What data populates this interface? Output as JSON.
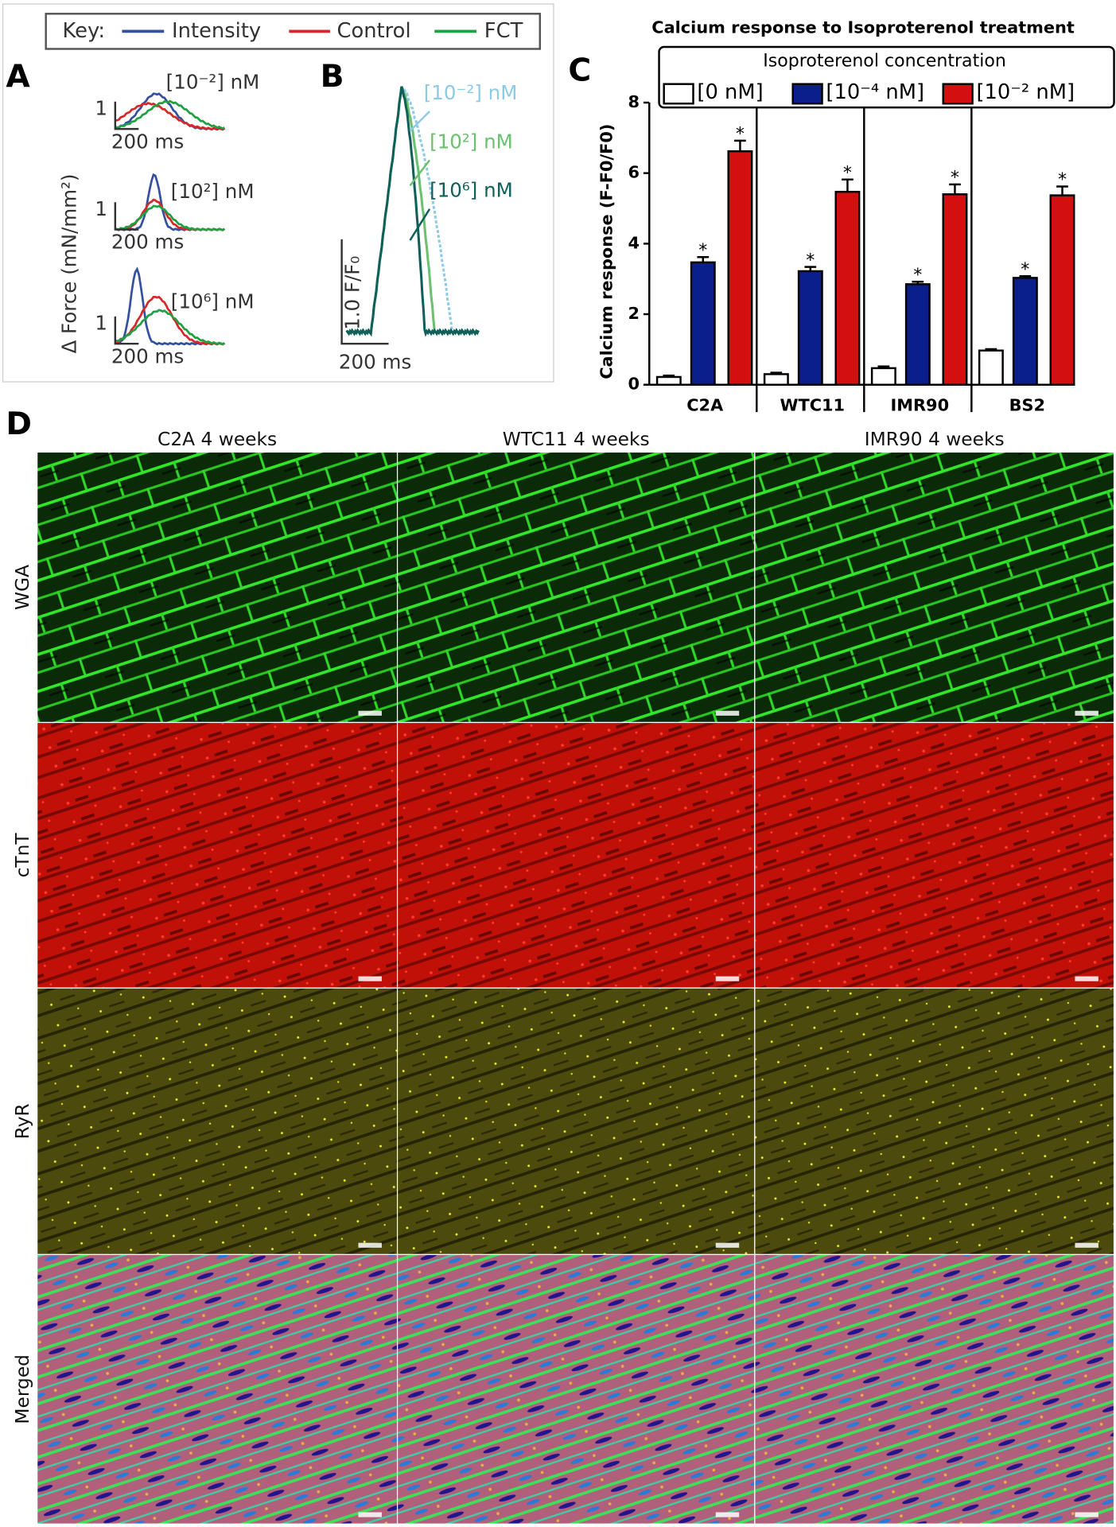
{
  "panel_labels": [
    "A",
    "B",
    "C",
    "D"
  ],
  "key": {
    "label": "Key:",
    "items": [
      "Intensity",
      "Control",
      "FCT"
    ]
  },
  "panel_a": {
    "ylabel": "Δ Force (mN/mm²)",
    "scale_value": "1",
    "scale_time": "200 ms",
    "concentrations": [
      "[10⁻²] nM",
      "[10²] nM",
      "[10⁶] nM"
    ]
  },
  "panel_b": {
    "scale_value": "1.0 F/F₀",
    "scale_time": "200 ms",
    "concentrations": [
      "[10⁻²] nM",
      "[10²] nM",
      "[10⁶] nM"
    ]
  },
  "chart_data": {
    "type": "bar",
    "title": "Calcium response to Isoproterenol treatment",
    "ylabel": "Calcium response (F-F0/F0)",
    "legend_title": "Isoproterenol concentration",
    "categories": [
      "C2A",
      "WTC11",
      "IMR90",
      "BS2"
    ],
    "series": [
      {
        "name": "[0 nM]",
        "color": "#ffffff",
        "values": [
          0.22,
          0.3,
          0.47,
          0.97
        ],
        "errors": [
          0.04,
          0.04,
          0.05,
          0.04
        ]
      },
      {
        "name": "[10⁻⁴ nM]",
        "color": "#0a1e8c",
        "values": [
          3.47,
          3.22,
          2.85,
          3.03
        ],
        "errors": [
          0.15,
          0.12,
          0.07,
          0.05
        ],
        "significance": "*"
      },
      {
        "name": "[10⁻² nM]",
        "color": "#d40f0f",
        "values": [
          6.62,
          5.47,
          5.4,
          5.37
        ],
        "errors": [
          0.3,
          0.35,
          0.28,
          0.25
        ],
        "significance": "*"
      }
    ],
    "ylim": [
      0,
      8
    ],
    "yticks": [
      0,
      2,
      4,
      6,
      8
    ]
  },
  "panel_d": {
    "columns": [
      "C2A 4 weeks",
      "WTC11 4 weeks",
      "IMR90 4 weeks"
    ],
    "rows": [
      "WGA",
      "cTnT",
      "RyR",
      "Merged"
    ]
  }
}
